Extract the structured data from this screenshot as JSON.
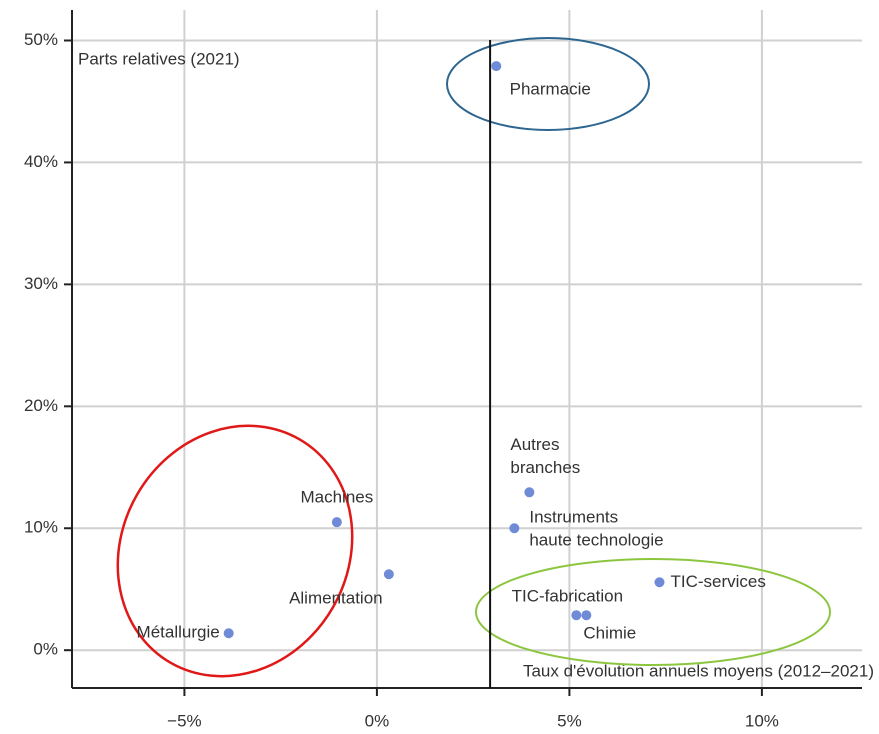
{
  "chart_data": {
    "type": "scatter",
    "y_label": "Parts relatives (2021)",
    "x_label": "Taux d'évolution annuels moyens (2012–2021)",
    "labels": [
      "Pharmacie",
      [
        "Autres",
        "branches"
      ],
      [
        "Instruments",
        "haute technologie"
      ],
      "TIC-services",
      "TIC-fabrication",
      "Chimie",
      "Machines",
      "Alimentation",
      "Métallurgie"
    ],
    "x": [
      3.1,
      3.96,
      3.57,
      7.34,
      5.18,
      5.44,
      -1.04,
      0.31,
      -3.85
    ],
    "values": [
      47.9,
      12.95,
      10.0,
      5.57,
      2.87,
      2.87,
      10.5,
      6.23,
      1.39
    ],
    "color": "#6f8ad6",
    "reference_x": 2.94,
    "xlim": [
      -7.92,
      12.6
    ],
    "ylim": [
      -3.1,
      52.5
    ],
    "xticks": [
      {
        "value": -5,
        "label": "−5%"
      },
      {
        "value": 0,
        "label": "0%"
      },
      {
        "value": 5,
        "label": "5%"
      },
      {
        "value": 10,
        "label": "10%"
      }
    ],
    "yticks": [
      {
        "value": 0,
        "label": "0%"
      },
      {
        "value": 10,
        "label": "10%"
      },
      {
        "value": 20,
        "label": "20%"
      },
      {
        "value": 30,
        "label": "30%"
      },
      {
        "value": 40,
        "label": "40%"
      },
      {
        "value": 50,
        "label": "50%"
      }
    ],
    "grid": true
  }
}
